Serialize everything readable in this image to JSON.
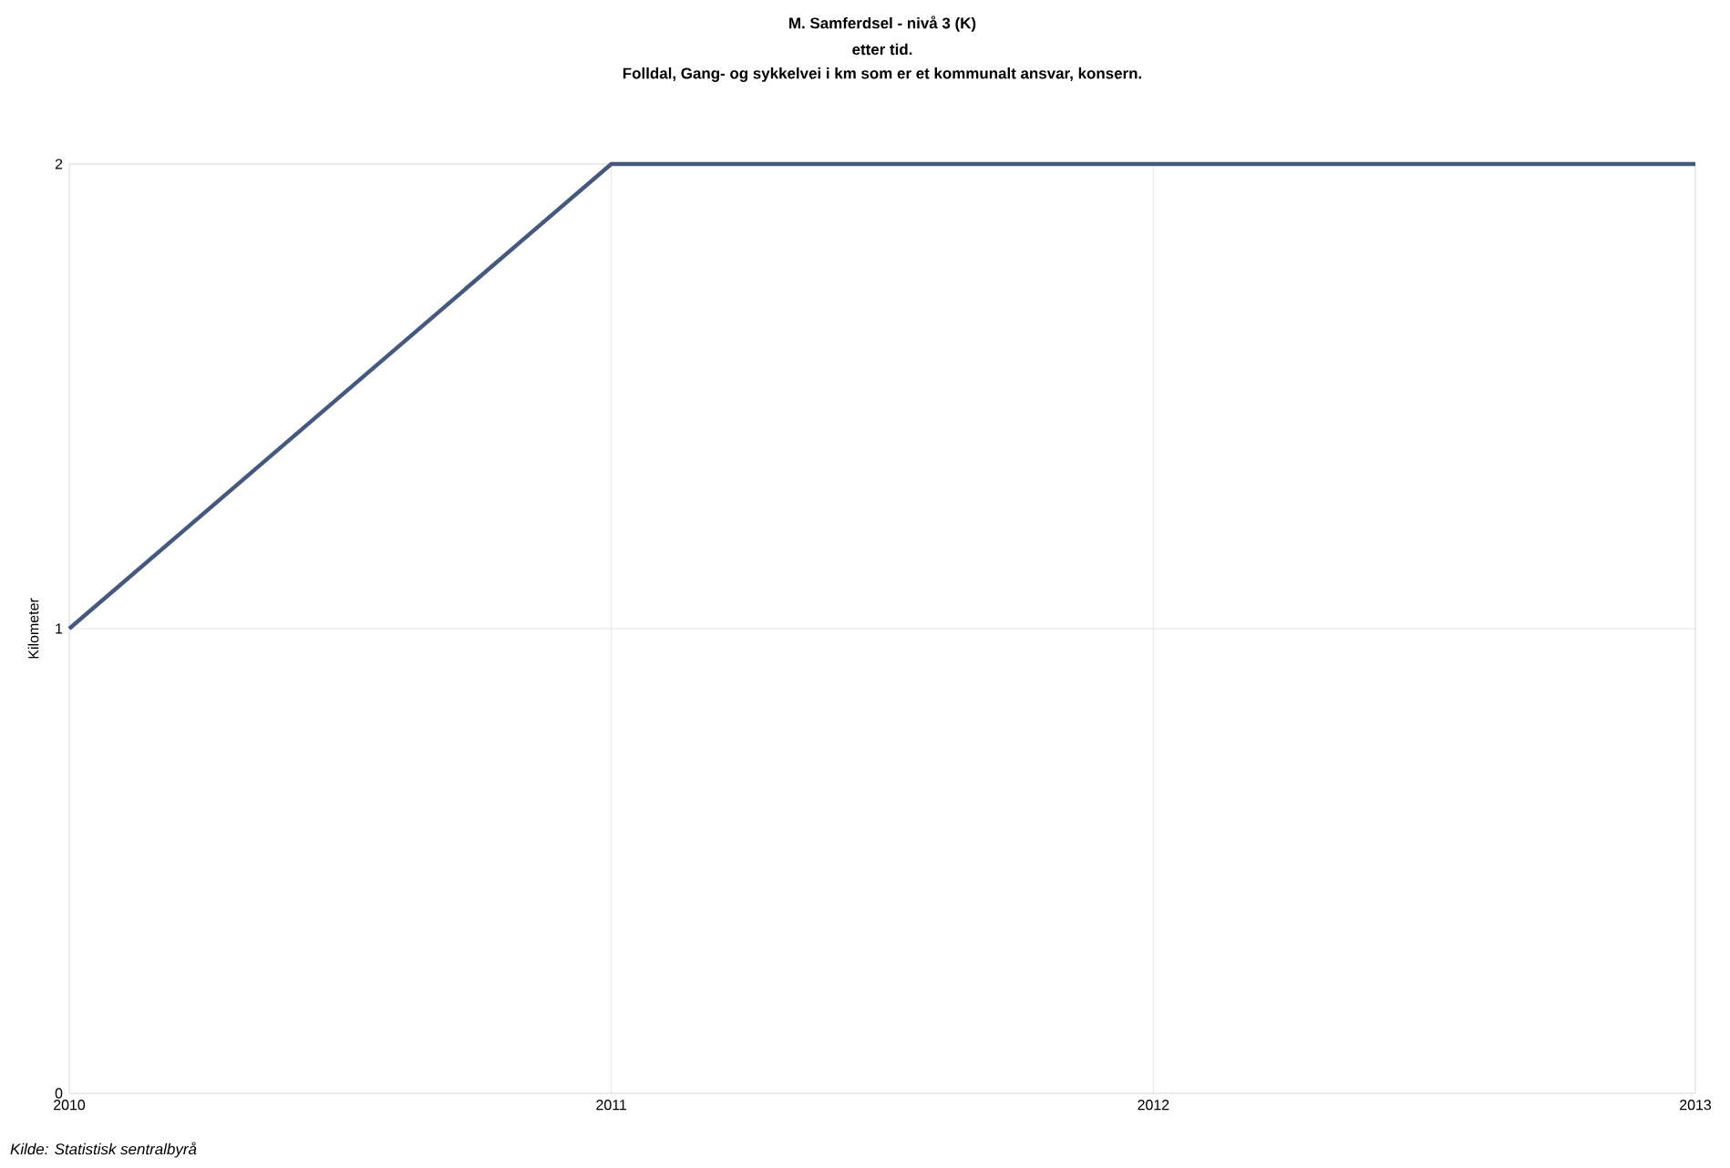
{
  "chart_data": {
    "type": "line",
    "title": "M. Samferdsel - nivå 3 (K)",
    "subtitle": "etter tid.",
    "annotations": [
      "Folldal, Gang- og sykkelvei i km som er et kommunalt ansvar, konsern.",
      "Kilde: Statistisk sentralbyrå"
    ],
    "ylabel": "Kilometer",
    "x": [
      2010,
      2011,
      2012,
      2013
    ],
    "series": [
      {
        "color": "#45597f",
        "values": [
          1,
          2,
          2,
          2
        ]
      }
    ],
    "xlim": [
      2010,
      2013
    ],
    "xticks": [
      2010,
      2011,
      2012,
      2013
    ],
    "ylim": [
      0,
      2
    ],
    "yticks": [
      0,
      1,
      2
    ],
    "grid": true,
    "marker": "none",
    "line_style": "solid"
  }
}
